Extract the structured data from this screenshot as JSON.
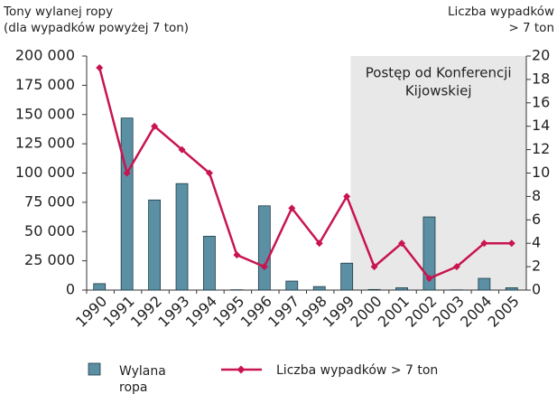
{
  "chart_data": {
    "type": "bar-line",
    "y_label": [
      "Tony wylanej ropy",
      "(dla wypadków powyżej 7 ton)"
    ],
    "y2_label": [
      "Liczba wypadków",
      "> 7 ton"
    ],
    "categories": [
      "1990",
      "1991",
      "1992",
      "1993",
      "1994",
      "1995",
      "1996",
      "1997",
      "1998",
      "1999",
      "2000",
      "2001",
      "2002",
      "2003",
      "2004",
      "2005"
    ],
    "series": [
      {
        "name": "Wylana ropa",
        "type": "bar",
        "color": "#5b8fa3",
        "values": [
          5500,
          147000,
          77000,
          91000,
          46000,
          300,
          72000,
          7700,
          3000,
          23000,
          500,
          2000,
          62500,
          200,
          10000,
          2000
        ]
      },
      {
        "name": "Liczba wypadków > 7 ton",
        "type": "line",
        "axis": "y2",
        "color": "#c8154f",
        "values": [
          19,
          10,
          14,
          12,
          10,
          3,
          2,
          7,
          4,
          8,
          2,
          4,
          1,
          2,
          4,
          4
        ]
      }
    ],
    "ylim": [
      0,
      200000
    ],
    "yticks": [
      0,
      {
        "value": 25000,
        "label": "25 000"
      },
      {
        "value": 50000,
        "label": "50 000"
      },
      {
        "value": 75000,
        "label": "75 000"
      },
      {
        "value": 100000,
        "label": "100 000"
      },
      {
        "value": 125000,
        "label": "125 000"
      },
      {
        "value": 150000,
        "label": "150 000"
      },
      {
        "value": 175000,
        "label": "175 000"
      },
      {
        "value": 200000,
        "label": "200 000"
      }
    ],
    "y2lim": [
      0,
      20
    ],
    "y2ticks": [
      0,
      2,
      4,
      6,
      8,
      10,
      12,
      14,
      16,
      18,
      20
    ],
    "highlight": {
      "from": 10,
      "label": [
        "Postęp od Konferencji",
        "Kijowskiej"
      ],
      "color": "#e8e8e8"
    }
  }
}
